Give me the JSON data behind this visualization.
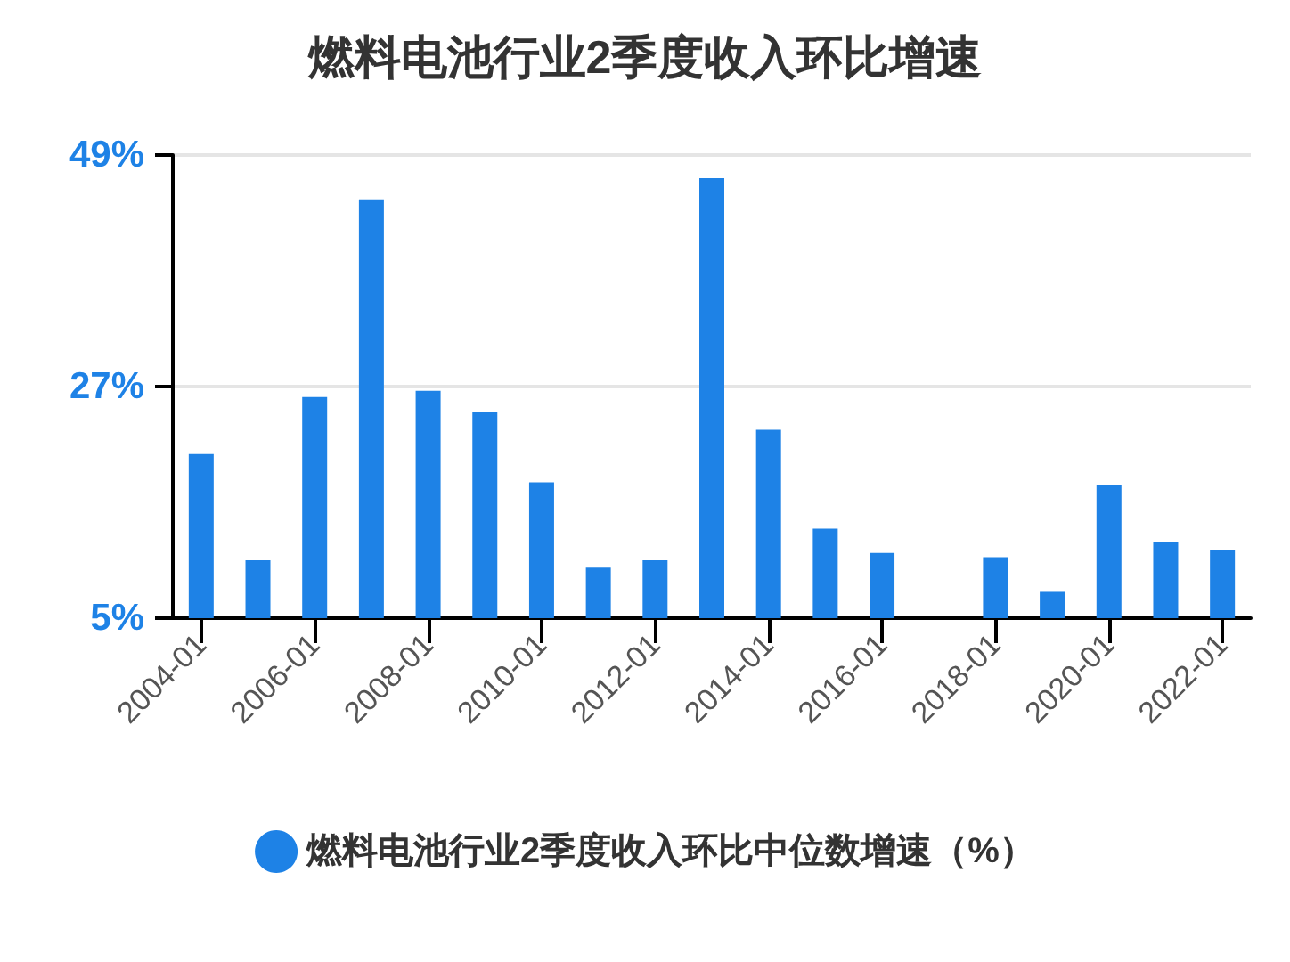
{
  "chart_data": {
    "type": "bar",
    "title": "燃料电池行业2季度收入环比增速",
    "categories": [
      "2004-01",
      null,
      "2006-01",
      null,
      "2008-01",
      null,
      "2010-01",
      null,
      "2012-01",
      null,
      "2014-01",
      null,
      "2016-01",
      null,
      "2018-01",
      null,
      "2020-01",
      null,
      "2022-01"
    ],
    "series": [
      {
        "name": "燃料电池行业2季度收入环比中位数增速（%）",
        "color": "#1e82e6",
        "values": [
          20.6,
          10.5,
          26.0,
          44.8,
          26.6,
          24.6,
          17.9,
          9.8,
          10.5,
          46.8,
          22.9,
          13.5,
          11.2,
          null,
          10.8,
          7.5,
          17.6,
          12.2,
          11.5
        ]
      }
    ],
    "ylim": [
      5,
      49
    ],
    "yticks": [
      {
        "value": 5,
        "label": "5%"
      },
      {
        "value": 27,
        "label": "27%"
      },
      {
        "value": 49,
        "label": "49%"
      }
    ],
    "grid": "y",
    "legend": "bottom",
    "marker": "circle"
  }
}
